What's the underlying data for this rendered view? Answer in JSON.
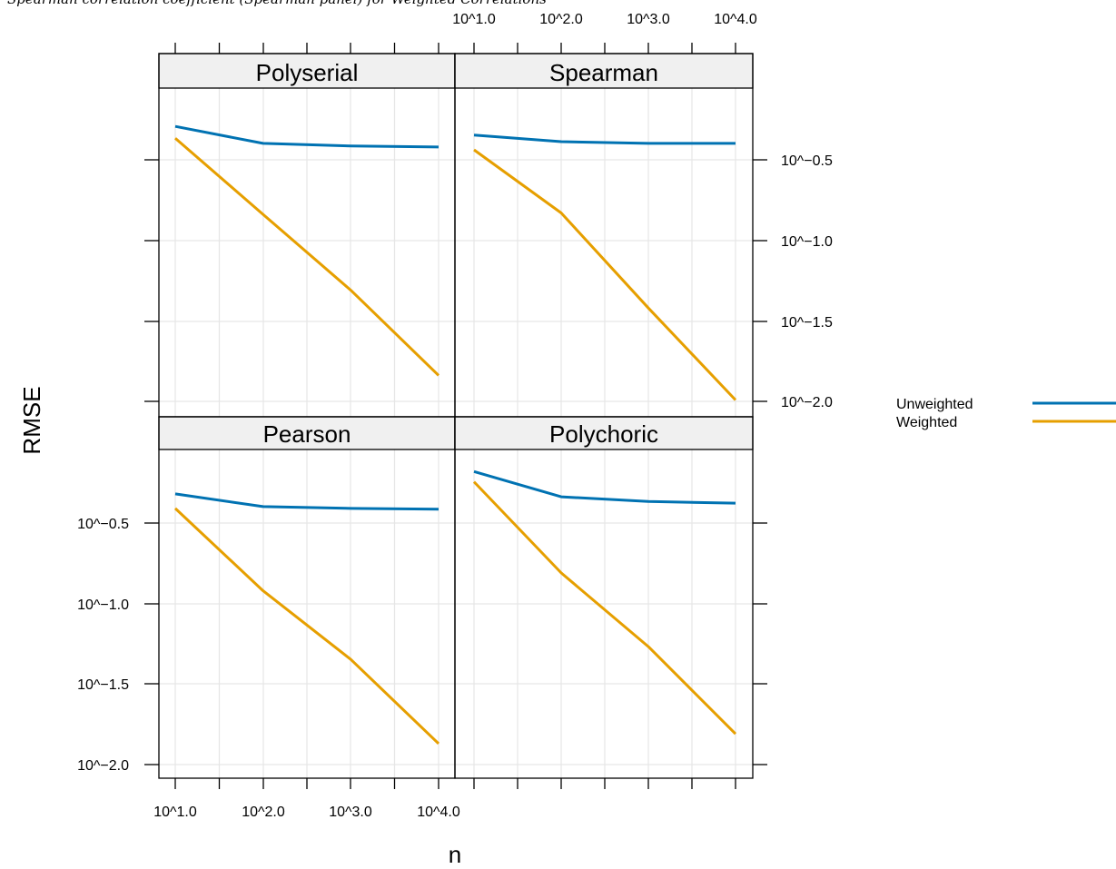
{
  "top_note": "Spearman correlation coefficient (Spearman panel) for Weighted Correlations",
  "colors": {
    "unweighted": "#0072B2",
    "weighted": "#E69F00",
    "strip_bg": "#F0F0F0",
    "grid": "#E6E6E6"
  },
  "chart_data": {
    "type": "line",
    "xlabel": "n",
    "ylabel": "RMSE",
    "x_scale": "log10",
    "y_scale": "log10",
    "x_tick_labels": [
      "10^1.0",
      "10^2.0",
      "10^3.0",
      "10^4.0"
    ],
    "y_tick_labels": [
      "10^−0.5",
      "10^−1.0",
      "10^−1.5",
      "10^−2.0"
    ],
    "xlim": [
      10,
      10000
    ],
    "legend": {
      "position": "right",
      "entries": [
        {
          "label": "Unweighted",
          "color": "#0072B2"
        },
        {
          "label": "Weighted",
          "color": "#E69F00"
        }
      ]
    },
    "panels": [
      {
        "name": "Polyserial",
        "x": [
          10,
          100,
          1000,
          10000
        ],
        "series": [
          {
            "name": "Unweighted",
            "values": [
              0.51,
              0.4,
              0.385,
              0.38
            ]
          },
          {
            "name": "Weighted",
            "values": [
              0.43,
              0.145,
              0.049,
              0.0145
            ]
          }
        ]
      },
      {
        "name": "Spearman",
        "x": [
          10,
          100,
          1000,
          10000
        ],
        "series": [
          {
            "name": "Unweighted",
            "values": [
              0.45,
              0.41,
              0.4,
              0.4
            ]
          },
          {
            "name": "Weighted",
            "values": [
              0.365,
              0.148,
              0.038,
              0.0102
            ]
          }
        ]
      },
      {
        "name": "Pearson",
        "x": [
          10,
          100,
          1000,
          10000
        ],
        "series": [
          {
            "name": "Unweighted",
            "values": [
              0.48,
              0.4,
              0.39,
              0.385
            ]
          },
          {
            "name": "Weighted",
            "values": [
              0.39,
              0.12,
              0.045,
              0.0135
            ]
          }
        ]
      },
      {
        "name": "Polychoric",
        "x": [
          10,
          100,
          1000,
          10000
        ],
        "series": [
          {
            "name": "Unweighted",
            "values": [
              0.66,
              0.46,
              0.43,
              0.42
            ]
          },
          {
            "name": "Weighted",
            "values": [
              0.57,
              0.155,
              0.054,
              0.0155
            ]
          }
        ]
      }
    ]
  }
}
